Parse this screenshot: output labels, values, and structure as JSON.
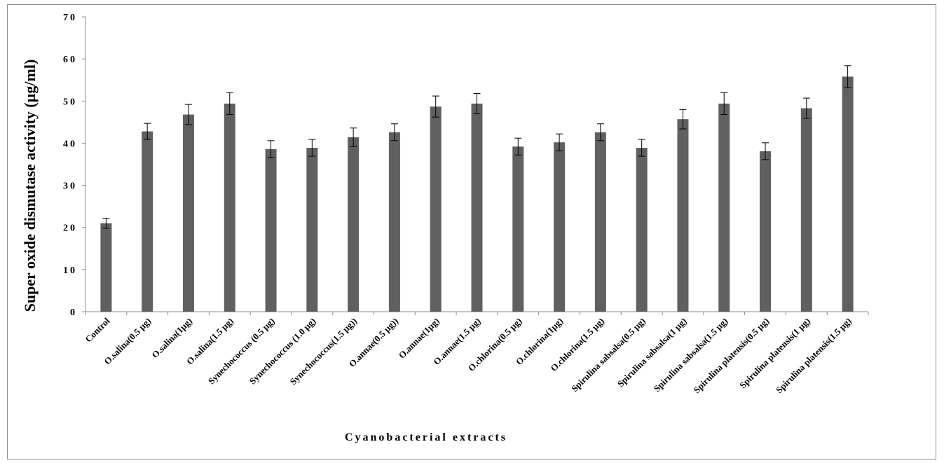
{
  "chart_data": {
    "type": "bar",
    "title": "",
    "xlabel": "Cyanobacterial extracts",
    "ylabel": "Super oxide dismutase activity (µg/ml)",
    "ylim": [
      0,
      70
    ],
    "yticks": [
      0,
      10,
      20,
      30,
      40,
      50,
      60,
      70
    ],
    "grid": false,
    "legend": "none",
    "bar_color": "#606060",
    "categories": [
      "Control",
      "O.salina(0.5 µg)",
      "O.salina(1µg)",
      "O.salina(1.5 µg)",
      "Synechococcus (0.5 µg)",
      "Synechococcus (1.0 µg)",
      "Synechococcus(1.5 µg))",
      "O.annae(0.5 µg))",
      "O.annae(1µg)",
      "O.annae(1.5 µg)",
      "O.chlorina(0.5 µg)",
      "O.chlorina(1µg)",
      "O.chlorina(1.5 µg)",
      "Spirulina sabsalsa(0.5 µg)",
      "Spirulina sabsalsa(1 µg)",
      "Spirulina sabsalsa(1.5 µg)",
      "Spirulina platensis(0.5 µg)",
      "Spirulina platensis(1 µg)",
      "Spirulina platensis(1.5 µg)"
    ],
    "values": [
      21,
      42.8,
      46.8,
      49.4,
      38.6,
      38.9,
      41.4,
      42.6,
      48.7,
      49.4,
      39.2,
      40.2,
      42.6,
      38.9,
      45.7,
      49.4,
      38.1,
      48.3,
      55.8
    ],
    "errors": [
      1.2,
      1.9,
      2.4,
      2.6,
      2.0,
      2.0,
      2.2,
      2.0,
      2.5,
      2.4,
      2.0,
      2.0,
      2.0,
      2.0,
      2.3,
      2.6,
      2.0,
      2.4,
      2.6
    ]
  }
}
